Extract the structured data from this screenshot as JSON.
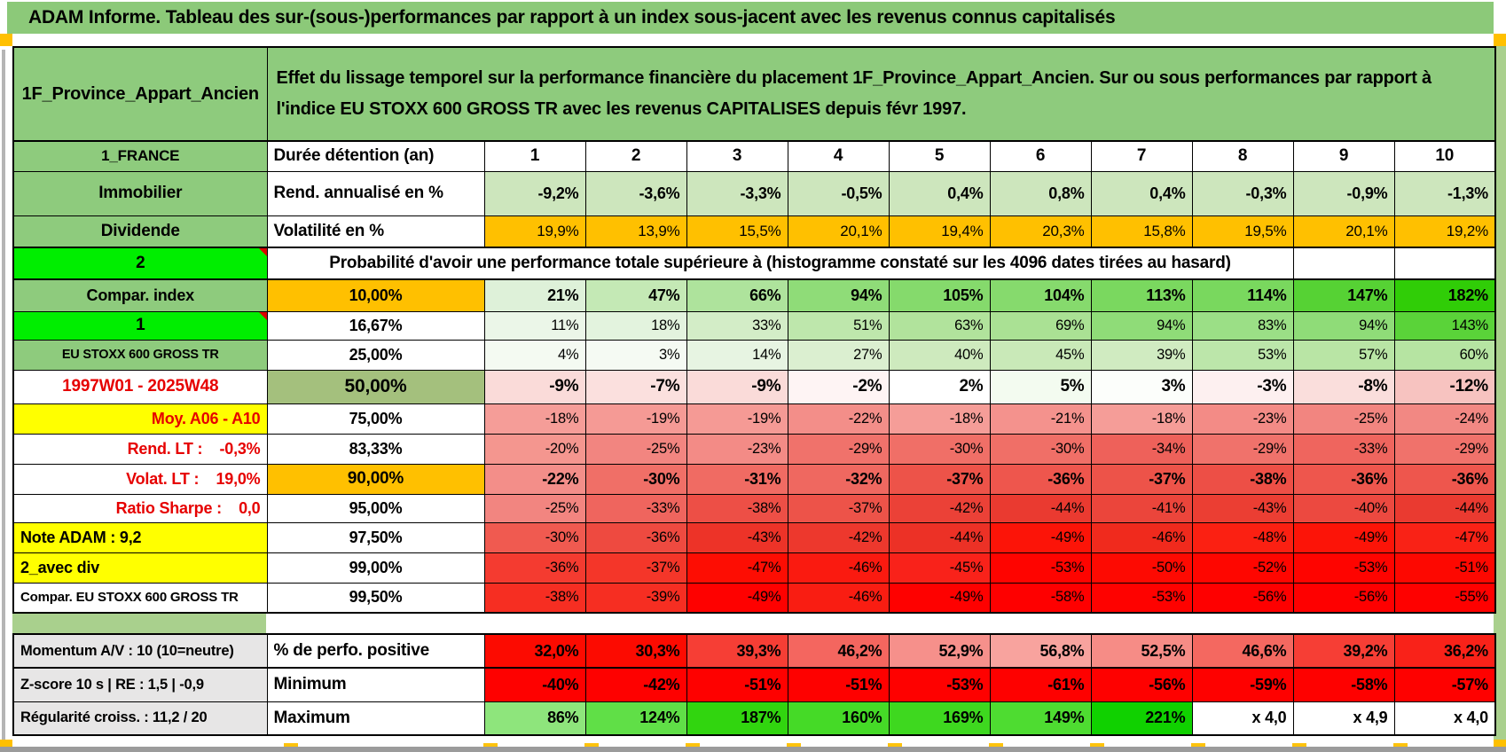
{
  "title": "ADAM Informe. Tableau des sur-(sous-)performances par rapport à un index sous-jacent avec les revenus connus capitalisés",
  "colors": {
    "title_green": "#8cc979",
    "label_green": "#8ecb7d",
    "frame_green": "#a9d08d",
    "bright_green": "#00ee00",
    "orange": "#ffc000",
    "yellow": "#ffff00",
    "red_text": "#e60000",
    "gray_label": "#e7e6e6",
    "olive_green": "#a4c07d",
    "light_green_row": "#cde6bd"
  },
  "header": {
    "name": "1F_Province_Appart_Ancien",
    "description": "Effet du lissage temporel sur la performance financière du placement 1F_Province_Appart_Ancien. Sur ou sous performances par rapport à l'indice EU STOXX 600 GROSS TR avec les revenus CAPITALISES depuis févr 1997."
  },
  "main": {
    "rows": [
      {
        "label": {
          "t": "1_FRANCE",
          "bg": "#8ecb7d",
          "size": 17
        },
        "head": {
          "t": "Durée détention (an)",
          "bg": "#ffffff",
          "align": "left",
          "size": 19
        },
        "cells": [
          "1",
          "2",
          "3",
          "4",
          "5",
          "6",
          "7",
          "8",
          "9",
          "10"
        ],
        "bg": "#ffffff",
        "bold": true,
        "align": "center",
        "size": 19
      },
      {
        "label": {
          "t": "Immobilier",
          "bg": "#8ecb7d",
          "size": 19
        },
        "head": {
          "t": "Rend. annualisé en %",
          "bg": "#ffffff",
          "align": "left",
          "size": 19
        },
        "cells": [
          "-9,2%",
          "-3,6%",
          "-3,3%",
          "-0,5%",
          "0,4%",
          "0,8%",
          "0,4%",
          "-0,3%",
          "-0,9%",
          "-1,3%"
        ],
        "bg": "#cde6bd",
        "bold": true,
        "size": 18
      },
      {
        "label": {
          "t": "Dividende",
          "bg": "#8ecb7d",
          "size": 19
        },
        "head": {
          "t": "Volatilité en %",
          "bg": "#ffffff",
          "align": "left",
          "size": 19
        },
        "cells": [
          "19,9%",
          "13,9%",
          "15,5%",
          "20,1%",
          "19,4%",
          "20,3%",
          "15,8%",
          "19,5%",
          "20,1%",
          "19,2%"
        ],
        "bg": "#ffc000",
        "size": 17
      },
      {
        "label": {
          "t": "2",
          "bg": "#00ee00",
          "size": 19,
          "marker": true
        },
        "wide": "Probabilité d'avoir une performance totale supérieure à (histogramme constaté sur les 4096 dates tirées au hasard)"
      },
      {
        "label": {
          "t": "Compar. index",
          "bg": "#8ecb7d",
          "size": 18
        },
        "head": {
          "t": "10,00%",
          "bg": "#ffc000",
          "size": 18
        },
        "cells": [
          "21%",
          "47%",
          "66%",
          "94%",
          "105%",
          "104%",
          "113%",
          "114%",
          "147%",
          "182%"
        ],
        "bg": [
          "#def1d9",
          "#c4e9b5",
          "#aee39c",
          "#8fdc78",
          "#85da6c",
          "#86da6d",
          "#7ad85f",
          "#79d85e",
          "#56d234",
          "#30cd07"
        ],
        "bold": true,
        "size": 18
      },
      {
        "label": {
          "t": "1",
          "bg": "#00ee00",
          "size": 19,
          "marker": true
        },
        "head": {
          "t": "16,67%",
          "size": 18
        },
        "cells": [
          "11%",
          "18%",
          "33%",
          "51%",
          "63%",
          "69%",
          "94%",
          "83%",
          "94%",
          "143%"
        ],
        "bg": [
          "#ebf6e8",
          "#e3f3de",
          "#d3edc7",
          "#bee7ac",
          "#b1e39c",
          "#aae194",
          "#8fdc78",
          "#9bdf86",
          "#8fdc78",
          "#5ad339"
        ],
        "size": 16.5
      },
      {
        "label": {
          "t": "EU STOXX 600 GROSS TR",
          "bg": "#8ecb7d",
          "size": 14.5
        },
        "head": {
          "t": "25,00%",
          "size": 18
        },
        "cells": [
          "4%",
          "3%",
          "14%",
          "27%",
          "40%",
          "45%",
          "39%",
          "53%",
          "57%",
          "60%"
        ],
        "bg": [
          "#f4faf2",
          "#f5faf3",
          "#e7f4e2",
          "#dbefd0",
          "#ceeabe",
          "#c9e9b8",
          "#d0ebc1",
          "#bce6aa",
          "#b9e5a5",
          "#b6e4a2"
        ],
        "size": 16.5
      },
      {
        "label": {
          "t": "1997W01 - 2025W48",
          "color": "#e60000",
          "size": 19
        },
        "head": {
          "t": "50,00%",
          "bg": "#a4c07d",
          "size": 21
        },
        "cells": [
          "-9%",
          "-7%",
          "-9%",
          "-2%",
          "2%",
          "5%",
          "3%",
          "-3%",
          "-8%",
          "-12%"
        ],
        "bg": [
          "#fadbd9",
          "#fbe0de",
          "#fadbd9",
          "#fef4f4",
          "#ffffff",
          "#f3fbf0",
          "#fcfefb",
          "#fdf0f0",
          "#fadedc",
          "#f7c3c0"
        ],
        "bold": true,
        "size": 19
      },
      {
        "label": {
          "t": "Moy. A06 - A10",
          "bg": "#ffff00",
          "color": "#e60000",
          "align": "right",
          "size": 18
        },
        "head": {
          "t": "75,00%",
          "size": 18
        },
        "cells": [
          "-18%",
          "-19%",
          "-19%",
          "-22%",
          "-18%",
          "-21%",
          "-18%",
          "-23%",
          "-25%",
          "-24%"
        ],
        "bg": [
          "#f59d98",
          "#f59a95",
          "#f59a95",
          "#f38e89",
          "#f59d98",
          "#f4928d",
          "#f59d98",
          "#f38b86",
          "#f28580",
          "#f28883"
        ],
        "size": 16.5
      },
      {
        "label": {
          "t": "Rend. LT :    -0,3%",
          "color": "#e60000",
          "align": "right",
          "size": 18,
          "pre": true
        },
        "head": {
          "t": "83,33%",
          "size": 18
        },
        "cells": [
          "-20%",
          "-25%",
          "-23%",
          "-29%",
          "-30%",
          "-30%",
          "-34%",
          "-29%",
          "-33%",
          "-29%"
        ],
        "bg": [
          "#f4968f",
          "#f28580",
          "#f38b86",
          "#f0726b",
          "#f06f67",
          "#f06f67",
          "#ee615a",
          "#f0726b",
          "#ef655e",
          "#f0726b"
        ],
        "size": 16.5
      },
      {
        "label": {
          "t": "Volat. LT :    19,0%",
          "color": "#e60000",
          "align": "right",
          "size": 18,
          "pre": true
        },
        "head": {
          "t": "90,00%",
          "bg": "#ffc000",
          "size": 19
        },
        "cells": [
          "-22%",
          "-30%",
          "-31%",
          "-32%",
          "-37%",
          "-36%",
          "-37%",
          "-38%",
          "-36%",
          "-36%"
        ],
        "bg": [
          "#f38e89",
          "#f06f67",
          "#f06b63",
          "#ef6860",
          "#ed5349",
          "#ee564d",
          "#ed5349",
          "#ed4f46",
          "#ee564d",
          "#ee564d"
        ],
        "bold": true,
        "size": 18
      },
      {
        "label": {
          "t": "Ratio Sharpe :    0,0",
          "color": "#e60000",
          "align": "right",
          "size": 18,
          "pre": true
        },
        "head": {
          "t": "95,00%",
          "size": 18
        },
        "cells": [
          "-25%",
          "-33%",
          "-38%",
          "-37%",
          "-42%",
          "-44%",
          "-41%",
          "-43%",
          "-40%",
          "-44%"
        ],
        "bg": [
          "#f28580",
          "#ef655e",
          "#ed4f46",
          "#ed5349",
          "#eb4137",
          "#ea3a30",
          "#eb453b",
          "#eb3e33",
          "#ec4940",
          "#ea3a30"
        ],
        "size": 16.5
      },
      {
        "label": {
          "t": "Note ADAM : 9,2",
          "bg": "#ffff00",
          "align": "left",
          "size": 18
        },
        "head": {
          "t": "97,50%",
          "size": 18
        },
        "cells": [
          "-30%",
          "-36%",
          "-43%",
          "-42%",
          "-44%",
          "-49%",
          "-46%",
          "-48%",
          "-49%",
          "-47%"
        ],
        "bg": [
          "#f05a50",
          "#ee4a40",
          "#ed3328",
          "#ed382d",
          "#ec3126",
          "#fc1408",
          "#f02a1d",
          "#fb2012",
          "#fc1408",
          "#f92216"
        ],
        "size": 16.5
      },
      {
        "label": {
          "t": "2_avec div",
          "bg": "#ffff00",
          "align": "left",
          "size": 18
        },
        "head": {
          "t": "99,00%",
          "size": 18
        },
        "cells": [
          "-36%",
          "-37%",
          "-47%",
          "-46%",
          "-45%",
          "-53%",
          "-50%",
          "-52%",
          "-53%",
          "-51%"
        ],
        "bg": [
          "#f43b30",
          "#f43629",
          "#fd0d03",
          "#fa1a10",
          "#f9221a",
          "#fe0400",
          "#fd0a02",
          "#fe0600",
          "#fe0400",
          "#fd0801"
        ],
        "size": 16.5
      },
      {
        "label": {
          "t": "Compar. EU STOXX 600 GROSS TR",
          "align": "left",
          "size": 15
        },
        "head": {
          "t": "99,50%",
          "size": 18
        },
        "cells": [
          "-38%",
          "-39%",
          "-49%",
          "-46%",
          "-49%",
          "-58%",
          "-53%",
          "-56%",
          "-56%",
          "-55%"
        ],
        "bg": [
          "#f62e22",
          "#f62e22",
          "#fe0100",
          "#f91d12",
          "#fe0100",
          "#fe0000",
          "#fe0200",
          "#fe0000",
          "#fe0000",
          "#fe0100"
        ],
        "size": 16.5
      }
    ]
  },
  "bottom": {
    "rows": [
      {
        "label": {
          "t": "Momentum A/V : 10 (10=neutre)",
          "bg": "#e7e6e6",
          "align": "left",
          "size": 16.5
        },
        "head": {
          "t": "% de perfo. positive",
          "align": "left",
          "size": 19
        },
        "cells": [
          "32,0%",
          "30,3%",
          "39,3%",
          "46,2%",
          "52,9%",
          "56,8%",
          "52,5%",
          "46,6%",
          "39,2%",
          "36,2%"
        ],
        "bg": [
          "#fc0b01",
          "#fc0b01",
          "#f63e35",
          "#f4665f",
          "#f6908b",
          "#f8a39e",
          "#f68c86",
          "#f46860",
          "#f63e35",
          "#f92219"
        ],
        "bold": true,
        "size": 18
      },
      {
        "label": {
          "t": "Z-score 10 s | RE : 1,5 | -0,9",
          "bg": "#e7e6e6",
          "align": "left",
          "size": 16.5
        },
        "head": {
          "t": "Minimum",
          "align": "left",
          "size": 19
        },
        "cells": [
          "-40%",
          "-42%",
          "-51%",
          "-51%",
          "-53%",
          "-61%",
          "-56%",
          "-59%",
          "-58%",
          "-57%"
        ],
        "bg": [
          "#fe0100",
          "#fe0100",
          "#fe0100",
          "#fe0100",
          "#fe0100",
          "#fe0100",
          "#fe0100",
          "#fe0100",
          "#fe0100",
          "#fe0100"
        ],
        "bold": true,
        "size": 18
      },
      {
        "label": {
          "t": "Régularité croiss. : 11,2 / 20",
          "bg": "#e7e6e6",
          "align": "left",
          "size": 16.5
        },
        "head": {
          "t": "Maximum",
          "align": "left",
          "size": 19
        },
        "cells": [
          "86%",
          "124%",
          "187%",
          "160%",
          "169%",
          "149%",
          "221%",
          "x 4,0",
          "x 4,9",
          "x 4,0"
        ],
        "bg": [
          "#8ee57c",
          "#60df47",
          "#31d50f",
          "#45da27",
          "#3ed81f",
          "#4edc31",
          "#10d100",
          "#ffffff",
          "#ffffff",
          "#ffffff"
        ],
        "bold": true,
        "size": 18
      }
    ]
  }
}
